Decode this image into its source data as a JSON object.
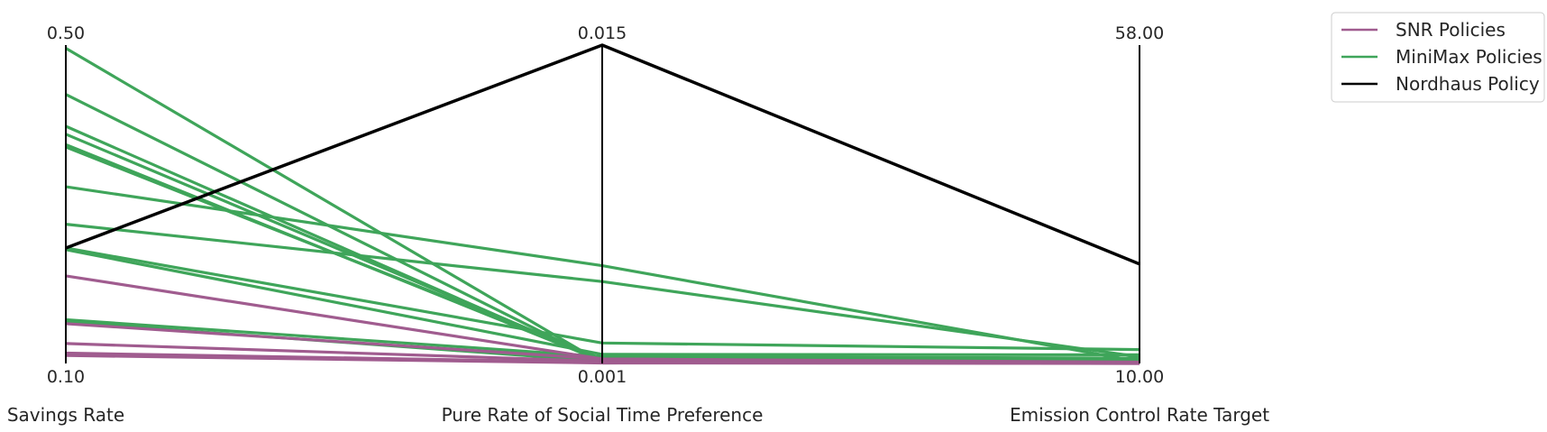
{
  "chart_data": {
    "type": "parallel_coordinates",
    "title": "",
    "axes": [
      {
        "name": "Savings Rate",
        "min": 0.1,
        "max": 0.5,
        "min_label": "0.10",
        "max_label": "0.50"
      },
      {
        "name": "Pure Rate of Social Time Preference",
        "min": 0.001,
        "max": 0.015,
        "min_label": "0.001",
        "max_label": "0.015"
      },
      {
        "name": "Emission Control Rate Target",
        "min": 10.0,
        "max": 58.0,
        "min_label": "10.00",
        "max_label": "58.00"
      }
    ],
    "series": [
      {
        "name": "SNR Policies",
        "color": "#a05c8f",
        "lines": [
          [
            0.21,
            0.0012,
            10.2
          ],
          [
            0.15,
            0.0012,
            10.1
          ],
          [
            0.125,
            0.0011,
            10.1
          ],
          [
            0.113,
            0.00105,
            10.0
          ],
          [
            0.11,
            0.00102,
            10.0
          ]
        ]
      },
      {
        "name": "MiniMax Policies",
        "color": "#3fa55a",
        "lines": [
          [
            0.496,
            0.00102,
            10.6
          ],
          [
            0.438,
            0.00105,
            10.3
          ],
          [
            0.398,
            0.00108,
            10.1
          ],
          [
            0.388,
            0.00115,
            10.4
          ],
          [
            0.375,
            0.0011,
            10.2
          ],
          [
            0.372,
            0.0012,
            10.5
          ],
          [
            0.322,
            0.0053,
            10.3
          ],
          [
            0.275,
            0.0046,
            11.0
          ],
          [
            0.245,
            0.0019,
            12.1
          ],
          [
            0.243,
            0.0014,
            11.3
          ],
          [
            0.155,
            0.0013,
            10.8
          ],
          [
            0.152,
            0.0011,
            10.5
          ]
        ]
      },
      {
        "name": "Nordhaus Policy",
        "color": "#000000",
        "lines": [
          [
            0.245,
            0.015,
            25.0
          ]
        ]
      }
    ],
    "legend": {
      "position": "top-right",
      "entries": [
        "SNR Policies",
        "MiniMax Policies",
        "Nordhaus Policy"
      ]
    }
  }
}
